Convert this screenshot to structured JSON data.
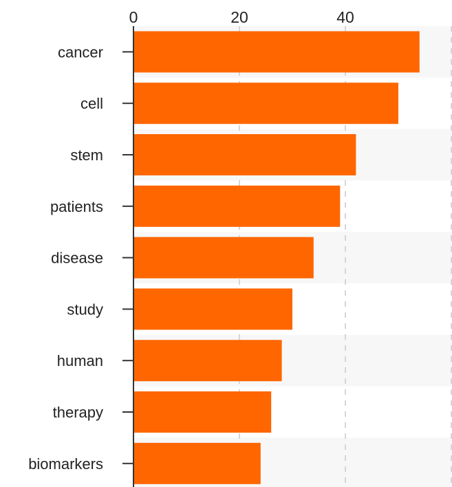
{
  "chart_data": {
    "type": "bar",
    "orientation": "horizontal",
    "categories": [
      "cancer",
      "cell",
      "stem",
      "patients",
      "disease",
      "study",
      "human",
      "therapy",
      "biomarkers"
    ],
    "values": [
      54,
      50,
      42,
      39,
      34,
      30,
      28,
      26,
      24
    ],
    "x_ticks": [
      "0",
      "20",
      "40"
    ],
    "xlim": [
      0,
      60
    ],
    "x_axis_position": "top",
    "grid": "vertical dashed",
    "legend": "none",
    "title": "",
    "xlabel": "",
    "ylabel": ""
  },
  "colors": {
    "bar": "#ff6600",
    "band_alt": "#f7f7f7",
    "grid": "#d6d6d6",
    "axis": "#333333",
    "text": "#222222"
  }
}
